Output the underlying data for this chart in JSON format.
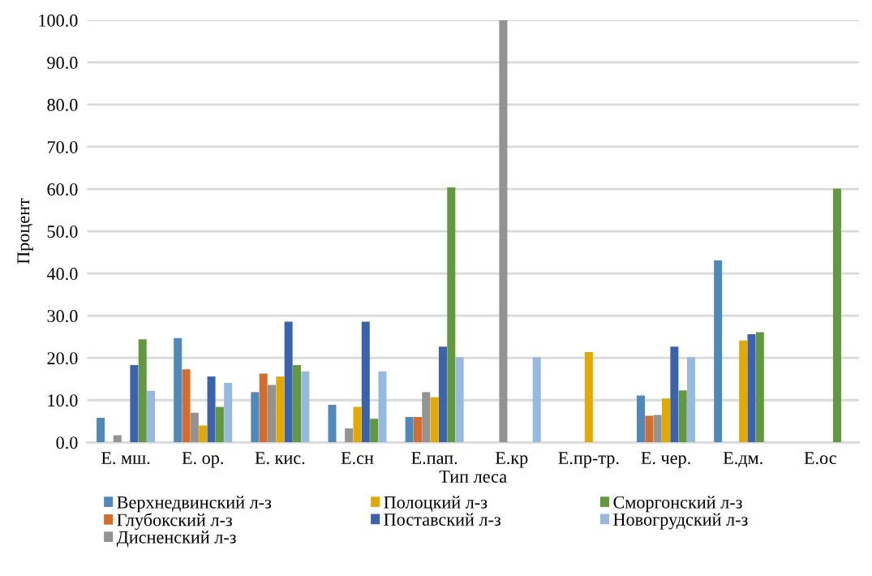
{
  "chart_data": {
    "type": "bar",
    "xlabel": "Тип леса",
    "ylabel": "Процент",
    "categories": [
      "Е. мш.",
      "Е. ор.",
      "Е. кис.",
      "Е.сн",
      "Е.пап.",
      "Е.кр",
      "Е.пр-тр.",
      "Е. чер.",
      "Е.дм.",
      "Е.ос"
    ],
    "series": [
      {
        "name": "Верхнедвинский л-з",
        "color": "#4f88bb",
        "values": [
          5.8,
          24.7,
          11.9,
          8.9,
          6.0,
          null,
          null,
          11.1,
          43.1,
          null
        ]
      },
      {
        "name": "Глубокский л-з",
        "color": "#d46c2c",
        "values": [
          null,
          17.3,
          16.3,
          null,
          6.0,
          null,
          null,
          6.3,
          null,
          null
        ]
      },
      {
        "name": "Дисненский л-з",
        "color": "#939393",
        "values": [
          1.7,
          7.0,
          13.6,
          3.3,
          11.9,
          100.0,
          null,
          6.5,
          null,
          null
        ]
      },
      {
        "name": "Полоцкий л-з",
        "color": "#e2aa00",
        "values": [
          null,
          4.0,
          15.6,
          8.4,
          10.7,
          null,
          21.4,
          10.4,
          24.1,
          null
        ]
      },
      {
        "name": "Поставский л-з",
        "color": "#3b63ad",
        "values": [
          18.3,
          15.6,
          28.6,
          28.6,
          22.7,
          null,
          null,
          22.7,
          25.6,
          null
        ]
      },
      {
        "name": "Сморгонский л-з",
        "color": "#62993e",
        "values": [
          24.4,
          8.4,
          18.3,
          5.6,
          60.4,
          null,
          null,
          12.3,
          26.1,
          60.1
        ]
      },
      {
        "name": "Новогрудский л-з",
        "color": "#97b9e0",
        "values": [
          12.2,
          14.1,
          16.8,
          16.8,
          20.2,
          20.2,
          null,
          20.2,
          null,
          null
        ]
      }
    ],
    "ylim": [
      0,
      100
    ],
    "yticks": [
      {
        "value": 0,
        "label": "0.0"
      },
      {
        "value": 10,
        "label": "10.0"
      },
      {
        "value": 20,
        "label": "20.0"
      },
      {
        "value": 30,
        "label": "30.0"
      },
      {
        "value": 40,
        "label": "40.0"
      },
      {
        "value": 50,
        "label": "50.0"
      },
      {
        "value": 60,
        "label": "60.0"
      },
      {
        "value": 70,
        "label": "70.0"
      },
      {
        "value": 80,
        "label": "80.0"
      },
      {
        "value": 90,
        "label": "90.0"
      },
      {
        "value": 100,
        "label": "100.0"
      }
    ],
    "grid": "y",
    "legend": "bottom"
  }
}
